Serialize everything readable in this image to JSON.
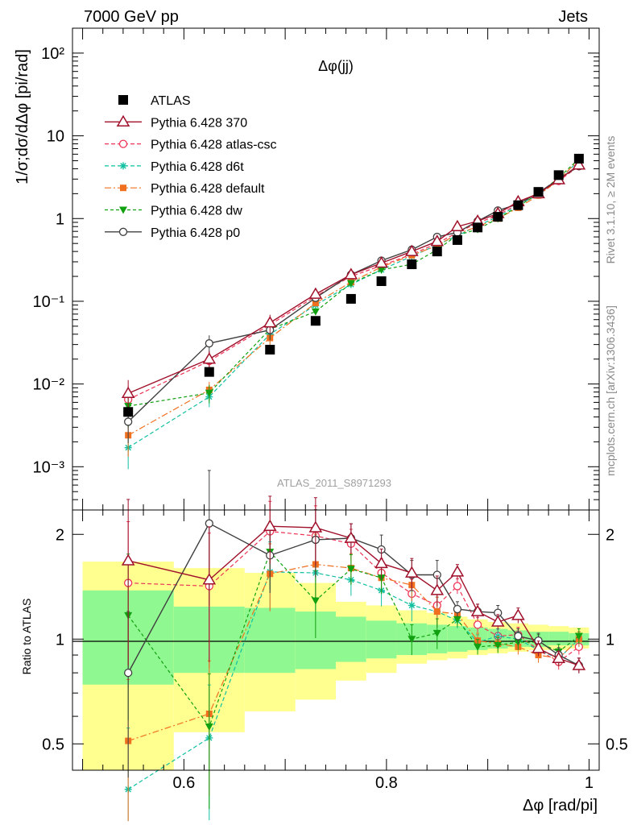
{
  "header": {
    "left": "7000 GeV pp",
    "right": "Jets"
  },
  "side_labels": {
    "top": "Rivet 3.1.10, ≥ 2M events",
    "bottom": "mcplots.cern.ch [arXiv:1306.3436]"
  },
  "colors": {
    "atlas": "#000000",
    "p370": "#a0102a",
    "atlascsc": "#ee3355",
    "d6t": "#10c0a0",
    "default": "#f07020",
    "dw": "#10a010",
    "p0": "#404040",
    "band1": "#90f890",
    "band2": "#ffff90"
  },
  "chart_data": [
    {
      "type": "line",
      "title": "Δφ(jj)",
      "ylabel": "1/σ;dσ/dΔφ [pi/rad]",
      "xlim": [
        0.49,
        1.01
      ],
      "ylim": [
        0.0003,
        200
      ],
      "log_y": true,
      "yticks": [
        0.001,
        0.01,
        0.1,
        1,
        10,
        100
      ],
      "ytick_labels": [
        "10⁻³",
        "10⁻²",
        "10⁻¹",
        "1",
        "10",
        "10²"
      ],
      "watermark": "ATLAS_2011_S8971293",
      "legend_position": "top-left",
      "x": [
        0.545,
        0.625,
        0.685,
        0.73,
        0.765,
        0.795,
        0.825,
        0.85,
        0.87,
        0.89,
        0.91,
        0.93,
        0.95,
        0.97,
        0.99
      ],
      "series": [
        {
          "name": "ATLAS",
          "key": "atlas",
          "values": [
            0.0046,
            0.014,
            0.026,
            0.058,
            0.107,
            0.175,
            0.28,
            0.4,
            0.55,
            0.78,
            1.05,
            1.45,
            2.1,
            3.35,
            5.3
          ],
          "errors": [
            0.0005,
            0.0012,
            0.002,
            0.004,
            0.007,
            0.01,
            0.015,
            0.02,
            0.025,
            0.035,
            0.045,
            0.06,
            0.08,
            0.12,
            0.18
          ]
        },
        {
          "name": "Pythia 6.428 370",
          "key": "p370",
          "values": [
            0.0077,
            0.02,
            0.055,
            0.122,
            0.21,
            0.29,
            0.4,
            0.53,
            0.8,
            0.93,
            1.15,
            1.6,
            2.0,
            2.95,
            4.45
          ]
        },
        {
          "name": "Pythia 6.428 atlas-csc",
          "key": "atlascsc",
          "values": [
            0.0065,
            0.019,
            0.052,
            0.115,
            0.2,
            0.27,
            0.37,
            0.5,
            0.68,
            0.88,
            1.1,
            1.5,
            1.95,
            2.85,
            4.3
          ]
        },
        {
          "name": "Pythia 6.428 d6t",
          "key": "d6t",
          "values": [
            0.0017,
            0.007,
            0.04,
            0.09,
            0.16,
            0.24,
            0.35,
            0.48,
            0.62,
            0.82,
            1.05,
            1.45,
            1.95,
            2.95,
            5.0
          ]
        },
        {
          "name": "Pythia 6.428 default",
          "key": "default",
          "values": [
            0.0024,
            0.0085,
            0.036,
            0.095,
            0.17,
            0.26,
            0.36,
            0.47,
            0.65,
            0.8,
            1.0,
            1.35,
            1.9,
            2.95,
            5.1
          ]
        },
        {
          "name": "Pythia 6.428 dw",
          "key": "dw",
          "values": [
            0.0054,
            0.0078,
            0.046,
            0.075,
            0.165,
            0.24,
            0.28,
            0.42,
            0.63,
            0.74,
            1.0,
            1.4,
            2.0,
            3.1,
            5.3
          ]
        },
        {
          "name": "Pythia 6.428 p0",
          "key": "p0",
          "values": [
            0.0035,
            0.031,
            0.045,
            0.11,
            0.21,
            0.31,
            0.42,
            0.6,
            0.68,
            0.93,
            1.25,
            1.5,
            2.05,
            3.0,
            4.3
          ]
        }
      ]
    },
    {
      "type": "line",
      "ylabel": "Ratio to ATLAS",
      "xlabel": "Δφ [rad/pi]",
      "xlim": [
        0.49,
        1.01
      ],
      "ylim": [
        0.42,
        2.35
      ],
      "log_y": true,
      "yticks": [
        0.5,
        1,
        2
      ],
      "ytick_labels": [
        "0.5",
        "1",
        "2"
      ],
      "xticks": [
        0.6,
        0.8,
        1.0
      ],
      "xtick_labels": [
        "0.6",
        "0.8",
        "1"
      ],
      "x": [
        0.545,
        0.625,
        0.685,
        0.73,
        0.765,
        0.795,
        0.825,
        0.85,
        0.87,
        0.89,
        0.91,
        0.93,
        0.95,
        0.97,
        0.99
      ],
      "bands": {
        "bins": [
          [
            0.5,
            0.59
          ],
          [
            0.59,
            0.66
          ],
          [
            0.66,
            0.71
          ],
          [
            0.71,
            0.75
          ],
          [
            0.75,
            0.78
          ],
          [
            0.78,
            0.81
          ],
          [
            0.81,
            0.84
          ],
          [
            0.84,
            0.86
          ],
          [
            0.86,
            0.88
          ],
          [
            0.88,
            0.9
          ],
          [
            0.9,
            0.92
          ],
          [
            0.92,
            0.94
          ],
          [
            0.94,
            0.96
          ],
          [
            0.96,
            0.98
          ],
          [
            0.98,
            1.0
          ]
        ],
        "inner": [
          [
            0.74,
            1.38
          ],
          [
            0.8,
            1.24
          ],
          [
            0.8,
            1.23
          ],
          [
            0.82,
            1.2
          ],
          [
            0.86,
            1.16
          ],
          [
            0.88,
            1.13
          ],
          [
            0.9,
            1.11
          ],
          [
            0.91,
            1.1
          ],
          [
            0.92,
            1.09
          ],
          [
            0.93,
            1.08
          ],
          [
            0.94,
            1.07
          ],
          [
            0.95,
            1.06
          ],
          [
            0.95,
            1.05
          ],
          [
            0.96,
            1.05
          ],
          [
            0.96,
            1.04
          ]
        ],
        "outer": [
          [
            0.42,
            1.67
          ],
          [
            0.54,
            1.6
          ],
          [
            0.62,
            1.55
          ],
          [
            0.67,
            1.45
          ],
          [
            0.76,
            1.28
          ],
          [
            0.8,
            1.25
          ],
          [
            0.85,
            1.21
          ],
          [
            0.87,
            1.19
          ],
          [
            0.88,
            1.16
          ],
          [
            0.9,
            1.14
          ],
          [
            0.91,
            1.12
          ],
          [
            0.92,
            1.11
          ],
          [
            0.93,
            1.1
          ],
          [
            0.93,
            1.09
          ],
          [
            0.94,
            1.08
          ]
        ]
      },
      "series": [
        {
          "name": "Pythia 6.428 370",
          "key": "p370",
          "values": [
            1.68,
            1.48,
            2.11,
            2.09,
            1.95,
            1.65,
            1.55,
            1.38,
            1.56,
            1.2,
            1.12,
            1.17,
            0.94,
            0.88,
            0.84
          ],
          "errors": [
            0.5,
            0.45,
            0.25,
            0.2,
            0.16,
            0.12,
            0.1,
            0.08,
            0.08,
            0.06,
            0.05,
            0.05,
            0.04,
            0.04,
            0.03
          ]
        },
        {
          "name": "Pythia 6.428 atlas-csc",
          "key": "atlascsc",
          "values": [
            1.45,
            1.42,
            2.04,
            1.98,
            1.88,
            1.55,
            1.35,
            1.25,
            1.42,
            1.1,
            1.02,
            1.03,
            0.93,
            0.86,
            0.95
          ]
        },
        {
          "name": "Pythia 6.428 d6t",
          "key": "d6t",
          "values": [
            0.37,
            0.52,
            1.56,
            1.55,
            1.48,
            1.38,
            1.25,
            1.2,
            1.13,
            0.98,
            1.02,
            1.0,
            0.93,
            0.88,
            1.0
          ]
        },
        {
          "name": "Pythia 6.428 default",
          "key": "default",
          "values": [
            0.51,
            0.61,
            1.54,
            1.64,
            1.6,
            1.5,
            1.43,
            1.2,
            1.18,
            0.99,
            0.97,
            0.95,
            0.9,
            0.88,
            1.0
          ]
        },
        {
          "name": "Pythia 6.428 dw",
          "key": "dw",
          "values": [
            1.17,
            0.56,
            1.78,
            1.29,
            1.59,
            1.5,
            1.0,
            1.04,
            1.14,
            0.95,
            0.96,
            0.98,
            0.98,
            0.92,
            1.02
          ]
        },
        {
          "name": "Pythia 6.428 p0",
          "key": "p0",
          "values": [
            0.8,
            2.15,
            1.74,
            1.93,
            1.95,
            1.81,
            1.53,
            1.53,
            1.22,
            1.2,
            1.19,
            1.02,
            0.99,
            0.9,
            0.84
          ]
        }
      ]
    }
  ]
}
